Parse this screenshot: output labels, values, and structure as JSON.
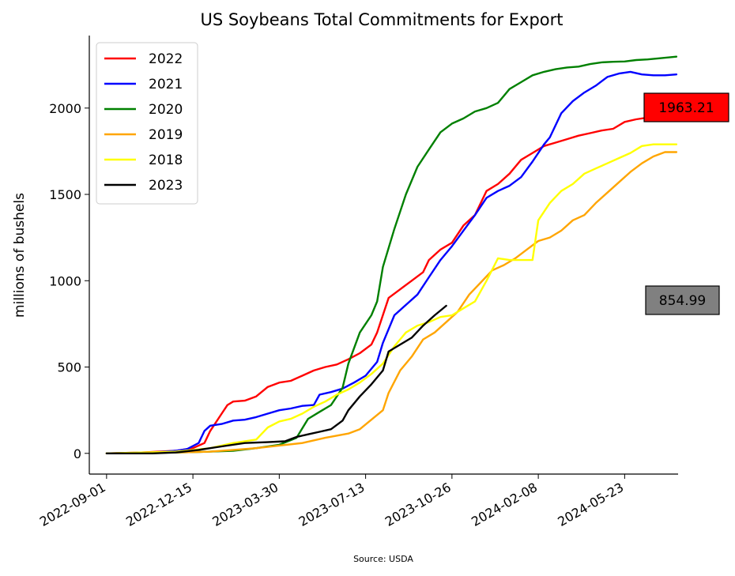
{
  "chart_data": {
    "type": "line",
    "title": "US Soybeans Total Commitments for Export",
    "xlabel": "",
    "ylabel": "millions of bushels",
    "source": "Source: USDA",
    "x_ticks": [
      "2022-09-01",
      "2022-12-15",
      "2023-03-30",
      "2023-07-13",
      "2023-10-26",
      "2024-02-08",
      "2024-05-23"
    ],
    "x_range": [
      "2022-08-11",
      "2024-07-27"
    ],
    "ylim": [
      -120,
      2420
    ],
    "y_ticks": [
      0,
      500,
      1000,
      1500,
      2000
    ],
    "grid": false,
    "legend_position": "top-left",
    "series": [
      {
        "name": "2022",
        "color": "#ff0000",
        "points": [
          [
            "2022-09-01",
            0
          ],
          [
            "2022-10-13",
            5
          ],
          [
            "2022-11-24",
            15
          ],
          [
            "2022-12-15",
            30
          ],
          [
            "2022-12-29",
            60
          ],
          [
            "2023-01-05",
            130
          ],
          [
            "2023-01-19",
            230
          ],
          [
            "2023-01-26",
            280
          ],
          [
            "2023-02-02",
            300
          ],
          [
            "2023-02-16",
            305
          ],
          [
            "2023-03-02",
            330
          ],
          [
            "2023-03-16",
            385
          ],
          [
            "2023-03-30",
            410
          ],
          [
            "2023-04-13",
            420
          ],
          [
            "2023-04-27",
            450
          ],
          [
            "2023-05-11",
            480
          ],
          [
            "2023-05-25",
            500
          ],
          [
            "2023-06-08",
            515
          ],
          [
            "2023-06-22",
            545
          ],
          [
            "2023-07-06",
            580
          ],
          [
            "2023-07-20",
            630
          ],
          [
            "2023-07-27",
            700
          ],
          [
            "2023-08-10",
            900
          ],
          [
            "2023-08-24",
            950
          ],
          [
            "2023-09-07",
            1000
          ],
          [
            "2023-09-21",
            1050
          ],
          [
            "2023-09-28",
            1120
          ],
          [
            "2023-10-12",
            1180
          ],
          [
            "2023-10-26",
            1220
          ],
          [
            "2023-11-09",
            1320
          ],
          [
            "2023-11-23",
            1380
          ],
          [
            "2023-12-07",
            1520
          ],
          [
            "2023-12-21",
            1560
          ],
          [
            "2024-01-04",
            1620
          ],
          [
            "2024-01-18",
            1700
          ],
          [
            "2024-02-01",
            1740
          ],
          [
            "2024-02-15",
            1780
          ],
          [
            "2024-02-29",
            1800
          ],
          [
            "2024-03-14",
            1820
          ],
          [
            "2024-03-28",
            1840
          ],
          [
            "2024-04-11",
            1855
          ],
          [
            "2024-04-25",
            1870
          ],
          [
            "2024-05-09",
            1880
          ],
          [
            "2024-05-23",
            1920
          ],
          [
            "2024-06-06",
            1935
          ],
          [
            "2024-06-20",
            1945
          ],
          [
            "2024-07-04",
            1955
          ],
          [
            "2024-07-18",
            1963
          ]
        ]
      },
      {
        "name": "2021",
        "color": "#0000ff",
        "points": [
          [
            "2022-09-01",
            0
          ],
          [
            "2022-10-27",
            5
          ],
          [
            "2022-11-24",
            15
          ],
          [
            "2022-12-08",
            25
          ],
          [
            "2022-12-22",
            60
          ],
          [
            "2022-12-29",
            130
          ],
          [
            "2023-01-05",
            160
          ],
          [
            "2023-01-19",
            170
          ],
          [
            "2023-02-02",
            190
          ],
          [
            "2023-02-16",
            195
          ],
          [
            "2023-03-02",
            210
          ],
          [
            "2023-03-16",
            230
          ],
          [
            "2023-03-30",
            250
          ],
          [
            "2023-04-13",
            260
          ],
          [
            "2023-04-27",
            275
          ],
          [
            "2023-05-11",
            280
          ],
          [
            "2023-05-18",
            340
          ],
          [
            "2023-06-01",
            355
          ],
          [
            "2023-06-15",
            375
          ],
          [
            "2023-06-29",
            410
          ],
          [
            "2023-07-13",
            450
          ],
          [
            "2023-07-27",
            530
          ],
          [
            "2023-08-03",
            640
          ],
          [
            "2023-08-17",
            800
          ],
          [
            "2023-08-31",
            860
          ],
          [
            "2023-09-14",
            920
          ],
          [
            "2023-09-28",
            1020
          ],
          [
            "2023-10-12",
            1120
          ],
          [
            "2023-10-26",
            1200
          ],
          [
            "2023-11-09",
            1290
          ],
          [
            "2023-11-23",
            1380
          ],
          [
            "2023-12-07",
            1480
          ],
          [
            "2023-12-21",
            1520
          ],
          [
            "2024-01-04",
            1550
          ],
          [
            "2024-01-18",
            1600
          ],
          [
            "2024-02-01",
            1690
          ],
          [
            "2024-02-15",
            1790
          ],
          [
            "2024-02-22",
            1830
          ],
          [
            "2024-03-07",
            1970
          ],
          [
            "2024-03-21",
            2040
          ],
          [
            "2024-04-04",
            2090
          ],
          [
            "2024-04-18",
            2130
          ],
          [
            "2024-05-02",
            2180
          ],
          [
            "2024-05-16",
            2200
          ],
          [
            "2024-05-30",
            2210
          ],
          [
            "2024-06-13",
            2195
          ],
          [
            "2024-06-27",
            2190
          ],
          [
            "2024-07-11",
            2190
          ],
          [
            "2024-07-25",
            2195
          ]
        ]
      },
      {
        "name": "2020",
        "color": "#008000",
        "points": [
          [
            "2022-09-01",
            0
          ],
          [
            "2022-11-24",
            5
          ],
          [
            "2023-01-05",
            10
          ],
          [
            "2023-02-02",
            15
          ],
          [
            "2023-03-02",
            30
          ],
          [
            "2023-03-30",
            50
          ],
          [
            "2023-04-20",
            90
          ],
          [
            "2023-05-04",
            200
          ],
          [
            "2023-05-18",
            240
          ],
          [
            "2023-06-01",
            280
          ],
          [
            "2023-06-15",
            380
          ],
          [
            "2023-06-22",
            520
          ],
          [
            "2023-07-06",
            700
          ],
          [
            "2023-07-20",
            800
          ],
          [
            "2023-07-27",
            880
          ],
          [
            "2023-08-03",
            1080
          ],
          [
            "2023-08-17",
            1300
          ],
          [
            "2023-08-31",
            1500
          ],
          [
            "2023-09-14",
            1660
          ],
          [
            "2023-09-28",
            1760
          ],
          [
            "2023-10-12",
            1860
          ],
          [
            "2023-10-26",
            1910
          ],
          [
            "2023-11-09",
            1940
          ],
          [
            "2023-11-23",
            1980
          ],
          [
            "2023-12-07",
            2000
          ],
          [
            "2023-12-21",
            2030
          ],
          [
            "2024-01-04",
            2110
          ],
          [
            "2024-01-18",
            2150
          ],
          [
            "2024-02-01",
            2190
          ],
          [
            "2024-02-15",
            2210
          ],
          [
            "2024-02-29",
            2225
          ],
          [
            "2024-03-14",
            2235
          ],
          [
            "2024-03-28",
            2240
          ],
          [
            "2024-04-11",
            2255
          ],
          [
            "2024-04-25",
            2265
          ],
          [
            "2024-05-09",
            2268
          ],
          [
            "2024-05-23",
            2270
          ],
          [
            "2024-06-06",
            2278
          ],
          [
            "2024-06-20",
            2282
          ],
          [
            "2024-07-04",
            2288
          ],
          [
            "2024-07-25",
            2298
          ]
        ]
      },
      {
        "name": "2019",
        "color": "#ffa500",
        "points": [
          [
            "2022-09-01",
            0
          ],
          [
            "2022-11-24",
            5
          ],
          [
            "2023-01-05",
            10
          ],
          [
            "2023-02-02",
            20
          ],
          [
            "2023-03-02",
            30
          ],
          [
            "2023-03-30",
            45
          ],
          [
            "2023-04-27",
            60
          ],
          [
            "2023-05-25",
            90
          ],
          [
            "2023-06-22",
            115
          ],
          [
            "2023-07-06",
            140
          ],
          [
            "2023-07-20",
            195
          ],
          [
            "2023-08-03",
            250
          ],
          [
            "2023-08-10",
            350
          ],
          [
            "2023-08-24",
            480
          ],
          [
            "2023-09-07",
            560
          ],
          [
            "2023-09-21",
            660
          ],
          [
            "2023-10-05",
            700
          ],
          [
            "2023-10-19",
            760
          ],
          [
            "2023-11-02",
            820
          ],
          [
            "2023-11-16",
            920
          ],
          [
            "2023-11-30",
            990
          ],
          [
            "2023-12-14",
            1060
          ],
          [
            "2023-12-28",
            1090
          ],
          [
            "2024-01-11",
            1130
          ],
          [
            "2024-01-25",
            1180
          ],
          [
            "2024-02-08",
            1230
          ],
          [
            "2024-02-22",
            1250
          ],
          [
            "2024-03-07",
            1290
          ],
          [
            "2024-03-21",
            1350
          ],
          [
            "2024-04-04",
            1380
          ],
          [
            "2024-04-18",
            1450
          ],
          [
            "2024-05-02",
            1510
          ],
          [
            "2024-05-16",
            1570
          ],
          [
            "2024-05-30",
            1630
          ],
          [
            "2024-06-13",
            1680
          ],
          [
            "2024-06-27",
            1720
          ],
          [
            "2024-07-11",
            1745
          ],
          [
            "2024-07-25",
            1745
          ]
        ]
      },
      {
        "name": "2018",
        "color": "#ffff00",
        "points": [
          [
            "2022-09-01",
            0
          ],
          [
            "2022-11-24",
            10
          ],
          [
            "2023-01-05",
            30
          ],
          [
            "2023-02-02",
            60
          ],
          [
            "2023-03-02",
            80
          ],
          [
            "2023-03-16",
            150
          ],
          [
            "2023-03-30",
            185
          ],
          [
            "2023-04-13",
            200
          ],
          [
            "2023-04-27",
            230
          ],
          [
            "2023-05-11",
            270
          ],
          [
            "2023-05-25",
            300
          ],
          [
            "2023-06-08",
            340
          ],
          [
            "2023-06-22",
            370
          ],
          [
            "2023-07-06",
            410
          ],
          [
            "2023-07-20",
            460
          ],
          [
            "2023-08-03",
            520
          ],
          [
            "2023-08-17",
            620
          ],
          [
            "2023-08-31",
            700
          ],
          [
            "2023-09-14",
            740
          ],
          [
            "2023-09-28",
            760
          ],
          [
            "2023-10-12",
            790
          ],
          [
            "2023-10-26",
            800
          ],
          [
            "2023-11-09",
            840
          ],
          [
            "2023-11-23",
            880
          ],
          [
            "2023-12-07",
            1000
          ],
          [
            "2023-12-21",
            1130
          ],
          [
            "2024-01-04",
            1120
          ],
          [
            "2024-01-18",
            1120
          ],
          [
            "2024-02-01",
            1120
          ],
          [
            "2024-02-08",
            1350
          ],
          [
            "2024-02-22",
            1450
          ],
          [
            "2024-03-07",
            1520
          ],
          [
            "2024-03-21",
            1560
          ],
          [
            "2024-04-04",
            1620
          ],
          [
            "2024-04-18",
            1650
          ],
          [
            "2024-05-02",
            1680
          ],
          [
            "2024-05-16",
            1710
          ],
          [
            "2024-05-30",
            1740
          ],
          [
            "2024-06-13",
            1780
          ],
          [
            "2024-06-27",
            1790
          ],
          [
            "2024-07-11",
            1790
          ],
          [
            "2024-07-25",
            1790
          ]
        ]
      },
      {
        "name": "2023",
        "color": "#000000",
        "points": [
          [
            "2022-09-01",
            0
          ],
          [
            "2022-10-27",
            0
          ],
          [
            "2022-11-24",
            5
          ],
          [
            "2022-12-22",
            20
          ],
          [
            "2023-01-19",
            40
          ],
          [
            "2023-02-16",
            60
          ],
          [
            "2023-03-16",
            65
          ],
          [
            "2023-04-06",
            70
          ],
          [
            "2023-04-20",
            95
          ],
          [
            "2023-05-04",
            110
          ],
          [
            "2023-05-18",
            125
          ],
          [
            "2023-06-01",
            140
          ],
          [
            "2023-06-15",
            190
          ],
          [
            "2023-06-22",
            250
          ],
          [
            "2023-07-06",
            330
          ],
          [
            "2023-07-20",
            400
          ],
          [
            "2023-08-03",
            480
          ],
          [
            "2023-08-10",
            590
          ],
          [
            "2023-08-24",
            630
          ],
          [
            "2023-09-07",
            670
          ],
          [
            "2023-09-21",
            740
          ],
          [
            "2023-10-05",
            800
          ],
          [
            "2023-10-19",
            855
          ]
        ]
      }
    ],
    "annotations": [
      {
        "text": "1963.21",
        "y": 1963.21,
        "box_color": "#ff0000"
      },
      {
        "text": "854.99",
        "y": 854.99,
        "box_color": "#808080"
      }
    ]
  }
}
